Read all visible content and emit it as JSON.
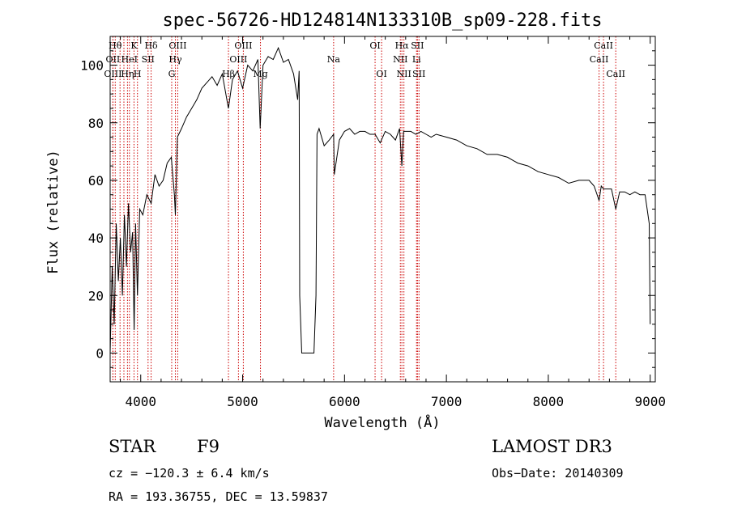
{
  "chart_data": {
    "type": "line",
    "title": "spec-56726-HD124814N133310B_sp09-228.fits",
    "xlabel": "Wavelength (Å)",
    "ylabel": "Flux (relative)",
    "xlim": [
      3700,
      9050
    ],
    "ylim": [
      -10,
      110
    ],
    "xticks": [
      4000,
      5000,
      6000,
      7000,
      8000,
      9000
    ],
    "yticks": [
      0,
      20,
      40,
      60,
      80,
      100
    ],
    "grid": false,
    "series": [
      {
        "x": [
          3700,
          3720,
          3740,
          3760,
          3780,
          3800,
          3820,
          3840,
          3860,
          3880,
          3900,
          3920,
          3935,
          3950,
          3968,
          3990,
          4020,
          4060,
          4102,
          4140,
          4180,
          4220,
          4260,
          4300,
          4330,
          4340,
          4360,
          4400,
          4450,
          4500,
          4550,
          4600,
          4650,
          4700,
          4750,
          4800,
          4861,
          4900,
          4950,
          5000,
          5050,
          5100,
          5150,
          5172,
          5200,
          5250,
          5300,
          5350,
          5400,
          5450,
          5500,
          5540,
          5555,
          5560,
          5580,
          5700,
          5720,
          5730,
          5750,
          5800,
          5850,
          5893,
          5900,
          5950,
          6000,
          6050,
          6100,
          6150,
          6200,
          6250,
          6300,
          6350,
          6400,
          6450,
          6500,
          6540,
          6563,
          6580,
          6600,
          6650,
          6700,
          6750,
          6800,
          6850,
          6900,
          7000,
          7100,
          7200,
          7300,
          7400,
          7500,
          7600,
          7700,
          7800,
          7900,
          8000,
          8100,
          8200,
          8300,
          8400,
          8450,
          8498,
          8520,
          8542,
          8580,
          8620,
          8662,
          8700,
          8750,
          8800,
          8850,
          8900,
          8950,
          8990,
          9000
        ],
        "y": [
          0,
          30,
          10,
          45,
          25,
          40,
          20,
          48,
          30,
          52,
          35,
          42,
          8,
          45,
          20,
          50,
          48,
          55,
          52,
          62,
          58,
          60,
          66,
          68,
          55,
          48,
          75,
          78,
          82,
          85,
          88,
          92,
          94,
          96,
          93,
          97,
          85,
          95,
          98,
          92,
          100,
          98,
          102,
          78,
          100,
          103,
          102,
          106,
          101,
          102,
          97,
          88,
          98,
          20,
          0,
          0,
          20,
          76,
          78,
          72,
          74,
          76,
          62,
          74,
          77,
          78,
          76,
          77,
          77,
          76,
          76,
          73,
          77,
          76,
          74,
          78,
          65,
          77,
          77,
          77,
          76,
          77,
          76,
          75,
          76,
          75,
          74,
          72,
          71,
          69,
          69,
          68,
          66,
          65,
          63,
          62,
          61,
          59,
          60,
          60,
          58,
          53,
          58,
          57,
          57,
          57,
          50,
          56,
          56,
          55,
          56,
          55,
          55,
          45,
          10
        ]
      }
    ],
    "line_markers": [
      {
        "x": 3750,
        "label": "Hθ",
        "row": 0
      },
      {
        "x": 3727,
        "label": "OII",
        "row": 1
      },
      {
        "x": 3727,
        "label": "OIII",
        "row": 2
      },
      {
        "x": 3797,
        "label": "",
        "row": -1
      },
      {
        "x": 3835,
        "label": "",
        "row": -1
      },
      {
        "x": 3889,
        "label": "HeI",
        "row": 1
      },
      {
        "x": 3870,
        "label": "Hη",
        "row": 2
      },
      {
        "x": 3934,
        "label": "K",
        "row": 0
      },
      {
        "x": 3968,
        "label": "H",
        "row": 2
      },
      {
        "x": 4072,
        "label": "SII",
        "row": 1
      },
      {
        "x": 4102,
        "label": "Hδ",
        "row": 0
      },
      {
        "x": 4304,
        "label": "G",
        "row": 2
      },
      {
        "x": 4340,
        "label": "Hγ",
        "row": 1
      },
      {
        "x": 4363,
        "label": "OIII",
        "row": 0
      },
      {
        "x": 4861,
        "label": "Hβ",
        "row": 4
      },
      {
        "x": 4959,
        "label": "OIII",
        "row": 1
      },
      {
        "x": 5007,
        "label": "OIII",
        "row": 0
      },
      {
        "x": 5175,
        "label": "Mg",
        "row": 4
      },
      {
        "x": 5893,
        "label": "Na",
        "row": 1
      },
      {
        "x": 6300,
        "label": "OI",
        "row": 0
      },
      {
        "x": 6364,
        "label": "OI",
        "row": 2
      },
      {
        "x": 6548,
        "label": "NII",
        "row": 1
      },
      {
        "x": 6563,
        "label": "Hα",
        "row": 0
      },
      {
        "x": 6583,
        "label": "NII",
        "row": 2
      },
      {
        "x": 6707,
        "label": "Li",
        "row": 1
      },
      {
        "x": 6716,
        "label": "SII",
        "row": 0
      },
      {
        "x": 6731,
        "label": "SII",
        "row": 2
      },
      {
        "x": 8498,
        "label": "CaII",
        "row": 1
      },
      {
        "x": 8542,
        "label": "CaII",
        "row": 0
      },
      {
        "x": 8662,
        "label": "CaII",
        "row": 2
      }
    ],
    "marker_color": "#cc0000"
  },
  "info": {
    "object_class": "STAR",
    "subclass": "F9",
    "survey": "LAMOST DR3",
    "cz": "cz = −120.3 ± 6.4 km/s",
    "obs_date": "Obs−Date: 20140309",
    "radec": "RA = 193.36755, DEC =  13.59837"
  }
}
